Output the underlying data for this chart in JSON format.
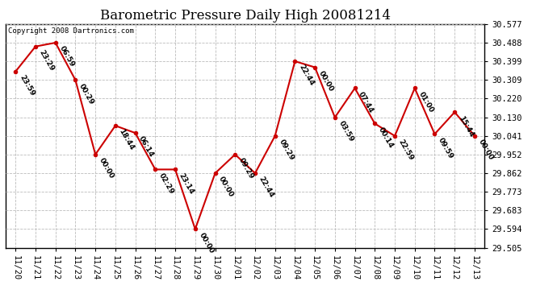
{
  "title": "Barometric Pressure Daily High 20081214",
  "copyright": "Copyright 2008 Dartronics.com",
  "x_labels": [
    "11/20",
    "11/21",
    "11/22",
    "11/23",
    "11/24",
    "11/25",
    "11/26",
    "11/27",
    "11/28",
    "11/29",
    "11/30",
    "12/01",
    "12/02",
    "12/03",
    "12/04",
    "12/05",
    "12/06",
    "12/07",
    "12/08",
    "12/09",
    "12/10",
    "12/11",
    "12/12",
    "12/13"
  ],
  "y_values": [
    30.35,
    30.47,
    30.488,
    30.309,
    29.952,
    30.09,
    30.055,
    29.88,
    29.88,
    29.594,
    29.862,
    29.952,
    29.862,
    30.041,
    30.399,
    30.37,
    30.13,
    30.27,
    30.1,
    30.041,
    30.27,
    30.05,
    30.155,
    30.041
  ],
  "time_labels": [
    "23:59",
    "23:29",
    "06:59",
    "00:29",
    "00:00",
    "18:44",
    "06:14",
    "02:29",
    "23:14",
    "00:00",
    "00:00",
    "09:29",
    "22:44",
    "09:29",
    "22:44",
    "00:00",
    "03:59",
    "07:44",
    "00:14",
    "22:59",
    "01:00",
    "09:59",
    "15:44",
    "00:00"
  ],
  "y_ticks": [
    29.505,
    29.594,
    29.683,
    29.773,
    29.862,
    29.952,
    30.041,
    30.13,
    30.22,
    30.309,
    30.399,
    30.488,
    30.577
  ],
  "y_min": 29.505,
  "y_max": 30.577,
  "line_color": "#cc0000",
  "marker_color": "#cc0000",
  "bg_color": "#ffffff",
  "grid_color": "#bbbbbb",
  "title_fontsize": 12,
  "copyright_fontsize": 6.5,
  "label_fontsize": 6.5,
  "tick_fontsize": 7.5
}
